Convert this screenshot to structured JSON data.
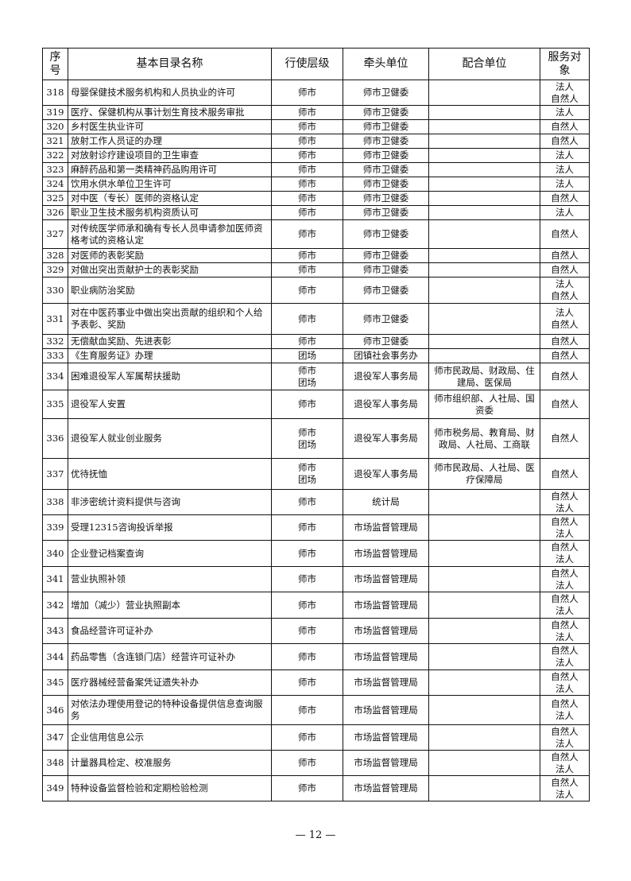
{
  "headers": [
    "序号",
    "基本目录名称",
    "行使层级",
    "牵头单位",
    "配合单位",
    "服务对象"
  ],
  "rows": [
    {
      "no": "318",
      "name": "母婴保健技术服务机构和人员执业的许可",
      "level": "师市",
      "lead": "师市卫健委",
      "coop": "",
      "target": "法人\n自然人",
      "h": 32
    },
    {
      "no": "319",
      "name": "医疗、保健机构从事计划生育技术服务审批",
      "level": "师市",
      "lead": "师市卫健委",
      "coop": "",
      "target": "法人",
      "h": 18
    },
    {
      "no": "320",
      "name": "乡村医生执业许可",
      "level": "师市",
      "lead": "师市卫健委",
      "coop": "",
      "target": "自然人",
      "h": 18
    },
    {
      "no": "321",
      "name": "放射工作人员证的办理",
      "level": "师市",
      "lead": "师市卫健委",
      "coop": "",
      "target": "自然人",
      "h": 18
    },
    {
      "no": "322",
      "name": "对放射诊疗建设项目的卫生审查",
      "level": "师市",
      "lead": "师市卫健委",
      "coop": "",
      "target": "法人",
      "h": 18
    },
    {
      "no": "323",
      "name": "麻醉药品和第一类精神药品购用许可",
      "level": "师市",
      "lead": "师市卫健委",
      "coop": "",
      "target": "法人",
      "h": 18
    },
    {
      "no": "324",
      "name": "饮用水供水单位卫生许可",
      "level": "师市",
      "lead": "师市卫健委",
      "coop": "",
      "target": "法人",
      "h": 18
    },
    {
      "no": "325",
      "name": "对中医（专长）医师的资格认定",
      "level": "师市",
      "lead": "师市卫健委",
      "coop": "",
      "target": "自然人",
      "h": 18
    },
    {
      "no": "326",
      "name": "职业卫生技术服务机构资质认可",
      "level": "师市",
      "lead": "师市卫健委",
      "coop": "",
      "target": "法人",
      "h": 18
    },
    {
      "no": "327",
      "name": "对传统医学师承和确有专长人员申请参加医师资格考试的资格认定",
      "level": "师市",
      "lead": "师市卫健委",
      "coop": "",
      "target": "自然人",
      "h": 36
    },
    {
      "no": "328",
      "name": "对医师的表彰奖励",
      "level": "师市",
      "lead": "师市卫健委",
      "coop": "",
      "target": "自然人",
      "h": 18
    },
    {
      "no": "329",
      "name": "对做出突出贡献护士的表彰奖励",
      "level": "师市",
      "lead": "师市卫健委",
      "coop": "",
      "target": "自然人",
      "h": 18
    },
    {
      "no": "330",
      "name": "职业病防治奖励",
      "level": "师市",
      "lead": "师市卫健委",
      "coop": "",
      "target": "法人\n自然人",
      "h": 33
    },
    {
      "no": "331",
      "name": "对在中医药事业中做出突出贡献的组织和个人给予表彰、奖励",
      "level": "师市",
      "lead": "师市卫健委",
      "coop": "",
      "target": "法人\n自然人",
      "h": 39
    },
    {
      "no": "332",
      "name": "无偿献血奖励、先进表彰",
      "level": "师市",
      "lead": "师市卫健委",
      "coop": "",
      "target": "自然人",
      "h": 18
    },
    {
      "no": "333",
      "name": "《生育服务证》办理",
      "level": "团场",
      "lead": "团镇社会事务办",
      "coop": "",
      "target": "自然人",
      "h": 18
    },
    {
      "no": "334",
      "name": "困难退役军人军属帮扶援助",
      "level": "师市\n团场",
      "lead": "退役军人事务局",
      "coop": "师市民政局、财政局、住建局、医保局",
      "target": "自然人",
      "h": 34
    },
    {
      "no": "335",
      "name": "退役军人安置",
      "level": "师市",
      "lead": "退役军人事务局",
      "coop": "师市组织部、人社局、国资委",
      "target": "自然人",
      "h": 36
    },
    {
      "no": "336",
      "name": "退役军人就业创业服务",
      "level": "师市\n团场",
      "lead": "退役军人事务局",
      "coop": "师市税务局、教育局、财政局、人社局、工商联",
      "target": "自然人",
      "h": 50
    },
    {
      "no": "337",
      "name": "优待抚恤",
      "level": "师市\n团场",
      "lead": "退役军人事务局",
      "coop": "师市民政局、人社局、医疗保障局",
      "target": "自然人",
      "h": 39
    },
    {
      "no": "338",
      "name": "非涉密统计资料提供与咨询",
      "level": "师市",
      "lead": "统计局",
      "coop": "",
      "target": "自然人\n法人",
      "h": 32
    },
    {
      "no": "339",
      "name": "受理12315咨询投诉举报",
      "level": "师市",
      "lead": "市场监督管理局",
      "coop": "",
      "target": "自然人\n法人",
      "h": 32
    },
    {
      "no": "340",
      "name": "企业登记档案查询",
      "level": "师市",
      "lead": "市场监督管理局",
      "coop": "",
      "target": "自然人\n法人",
      "h": 33
    },
    {
      "no": "341",
      "name": "营业执照补领",
      "level": "师市",
      "lead": "市场监督管理局",
      "coop": "",
      "target": "自然人\n法人",
      "h": 32
    },
    {
      "no": "342",
      "name": "增加（减少）营业执照副本",
      "level": "师市",
      "lead": "市场监督管理局",
      "coop": "",
      "target": "自然人\n法人",
      "h": 33
    },
    {
      "no": "343",
      "name": "食品经营许可证补办",
      "level": "师市",
      "lead": "市场监督管理局",
      "coop": "",
      "target": "自然人\n法人",
      "h": 32
    },
    {
      "no": "344",
      "name": "药品零售（含连锁门店）经营许可证补办",
      "level": "师市",
      "lead": "市场监督管理局",
      "coop": "",
      "target": "自然人\n法人",
      "h": 33
    },
    {
      "no": "345",
      "name": "医疗器械经营备案凭证遗失补办",
      "level": "师市",
      "lead": "市场监督管理局",
      "coop": "",
      "target": "自然人\n法人",
      "h": 32
    },
    {
      "no": "346",
      "name": "对依法办理使用登记的特种设备提供信息查询服务",
      "level": "师市",
      "lead": "市场监督管理局",
      "coop": "",
      "target": "自然人\n法人",
      "h": 37
    },
    {
      "no": "347",
      "name": "企业信用信息公示",
      "level": "师市",
      "lead": "市场监督管理局",
      "coop": "",
      "target": "自然人\n法人",
      "h": 32
    },
    {
      "no": "348",
      "name": "计量器具检定、校准服务",
      "level": "师市",
      "lead": "市场监督管理局",
      "coop": "",
      "target": "自然人\n法人",
      "h": 32
    },
    {
      "no": "349",
      "name": "特种设备监督检验和定期检验检测",
      "level": "师市",
      "lead": "市场监督管理局",
      "coop": "",
      "target": "自然人\n法人",
      "h": 32
    }
  ],
  "footer": "— 12 —"
}
